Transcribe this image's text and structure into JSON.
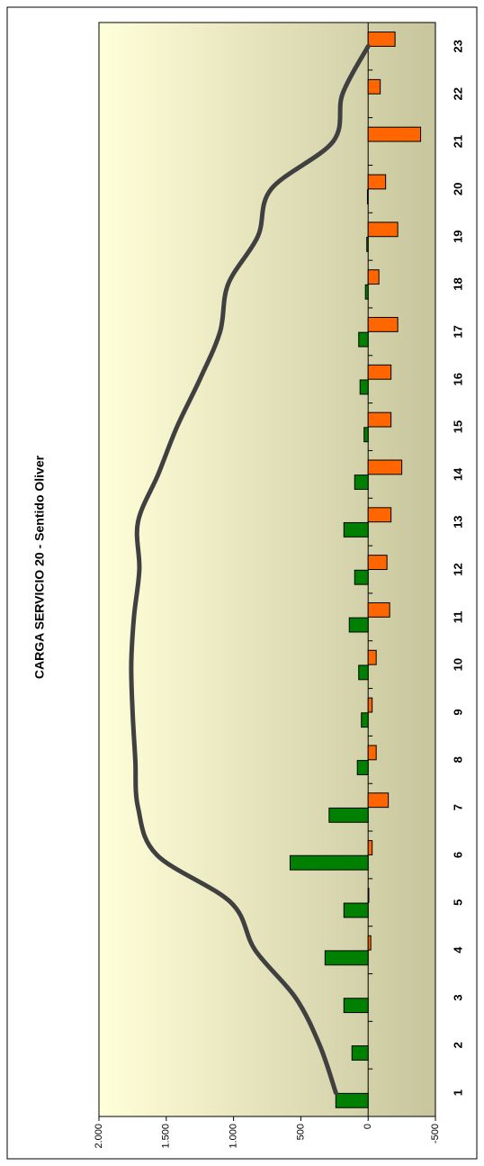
{
  "chart_data": {
    "type": "bar-line",
    "title": "CARGA SERVICIO 20 - Sentido Oliver",
    "categories": [
      "1",
      "2",
      "3",
      "4",
      "5",
      "6",
      "7",
      "8",
      "9",
      "10",
      "11",
      "12",
      "13",
      "14",
      "15",
      "16",
      "17",
      "18",
      "19",
      "20",
      "21",
      "22",
      "23"
    ],
    "series": [
      {
        "type": "bar",
        "color": "#008000",
        "values": [
          240,
          120,
          180,
          320,
          180,
          580,
          290,
          80,
          50,
          70,
          140,
          100,
          180,
          100,
          30,
          60,
          70,
          20,
          10,
          5,
          0,
          0,
          0
        ]
      },
      {
        "type": "bar",
        "color": "#ff6600",
        "values": [
          0,
          0,
          0,
          -20,
          -5,
          -30,
          -150,
          -60,
          -30,
          -60,
          -160,
          -140,
          -170,
          -250,
          -170,
          -170,
          -220,
          -80,
          -220,
          -130,
          -390,
          -90,
          -200
        ]
      },
      {
        "type": "line",
        "color": "#404040",
        "values": [
          240,
          360,
          540,
          840,
          1020,
          1570,
          1710,
          1730,
          1750,
          1760,
          1740,
          1700,
          1710,
          1560,
          1420,
          1250,
          1100,
          1040,
          820,
          720,
          260,
          190,
          0
        ]
      }
    ],
    "ylim": [
      -500,
      2000
    ],
    "yticks": [
      -500,
      0,
      500,
      {
        "value": 1000,
        "label": "1.000"
      },
      {
        "value": 1500,
        "label": "1.500"
      },
      {
        "value": 2000,
        "label": "2.000"
      }
    ]
  }
}
